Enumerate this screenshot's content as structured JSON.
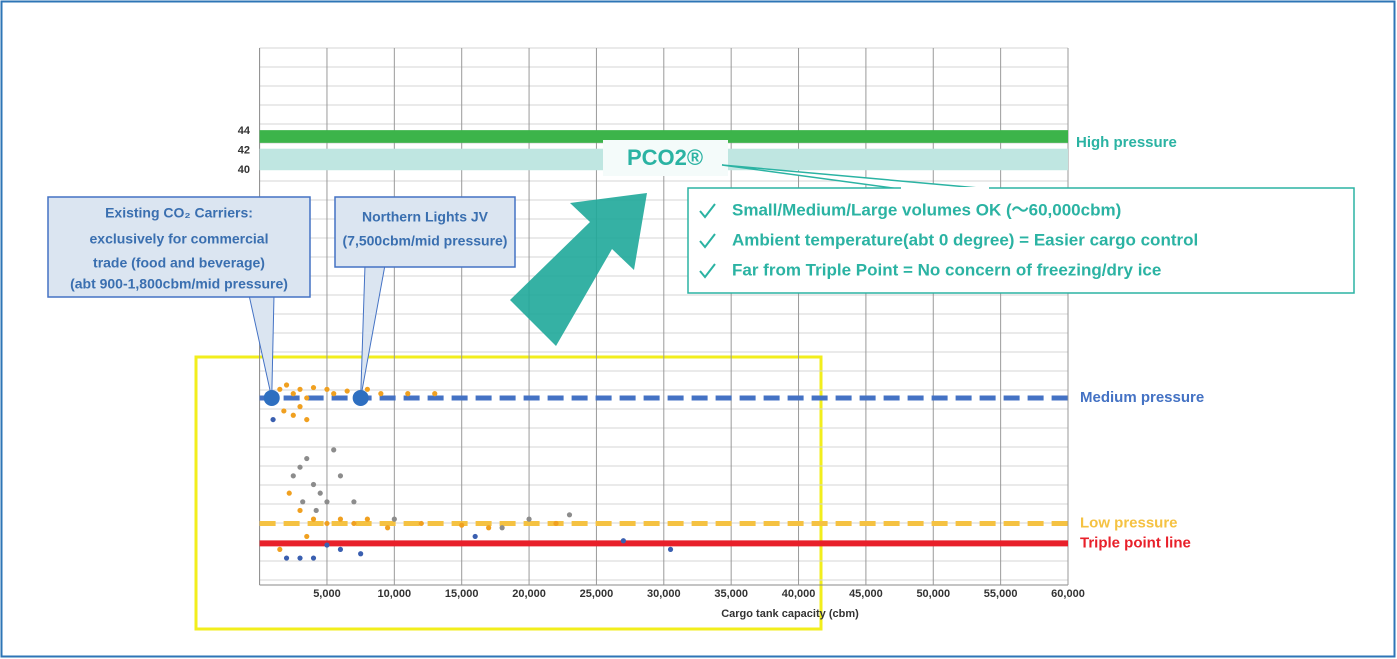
{
  "chart_data": {
    "type": "scatter",
    "xlabel": "Cargo tank capacity (cbm)",
    "xlim": [
      0,
      60000
    ],
    "xticks": [
      {
        "value": 5000,
        "label": "5,000"
      },
      {
        "value": 10000,
        "label": "10,000"
      },
      {
        "value": 15000,
        "label": "15,000"
      },
      {
        "value": 20000,
        "label": "20,000"
      },
      {
        "value": 25000,
        "label": "25,000"
      },
      {
        "value": 30000,
        "label": "30,000"
      },
      {
        "value": 35000,
        "label": "35,000"
      },
      {
        "value": 40000,
        "label": "40,000"
      },
      {
        "value": 45000,
        "label": "45,000"
      },
      {
        "value": 50000,
        "label": "50,000"
      },
      {
        "value": 55000,
        "label": "55,000"
      },
      {
        "value": 60000,
        "label": "60,000"
      }
    ],
    "ylim": [
      39,
      52.5
    ],
    "yticks": [
      40,
      42,
      44
    ],
    "y2lim": [
      -6,
      20
    ],
    "bands": [
      {
        "from": 42.8,
        "to": 44.1,
        "color": "#3cb44a"
      },
      {
        "from": 40,
        "to": 42.2,
        "color": "#bfe6e1"
      }
    ],
    "band_label": "High pressure",
    "levels": [
      {
        "label": "Medium pressure",
        "value": 17,
        "color": "#4472c4",
        "dashed": true,
        "axis": "y2"
      },
      {
        "label": "Low pressure",
        "value": 2.5,
        "color": "#f5c242",
        "dashed": true,
        "axis": "y2"
      },
      {
        "label": "Triple point line",
        "value": 0.2,
        "color": "#e8202a",
        "dashed": false,
        "axis": "y2"
      }
    ],
    "series": [
      {
        "color": "#f0a020",
        "axis": "y2",
        "x": [
          1500,
          2000,
          2500,
          3000,
          3500,
          4000,
          5000,
          5500,
          6500,
          8000,
          9000,
          11000,
          13000,
          1800,
          2500,
          3000,
          3500,
          2200,
          3000,
          4000,
          5000,
          6000,
          7000,
          8000,
          9500,
          12000,
          15000,
          17000,
          22000,
          3500,
          1500
        ],
        "values": [
          18,
          18.5,
          17.5,
          18,
          17,
          18.2,
          18,
          17.5,
          17.8,
          18,
          17.5,
          17.5,
          17.5,
          15.5,
          15,
          16,
          14.5,
          6,
          4,
          3,
          2.5,
          3,
          2.5,
          3,
          2,
          2.5,
          2.3,
          2,
          2.5,
          1,
          -0.5
        ]
      },
      {
        "color": "#8c8c8c",
        "axis": "y2",
        "x": [
          2500,
          3000,
          3500,
          4000,
          4500,
          5000,
          5500,
          6000,
          3200,
          4200,
          7000,
          10000,
          18000,
          20000,
          23000
        ],
        "values": [
          8,
          9,
          10,
          7,
          6,
          5,
          11,
          8,
          5,
          4,
          5,
          3,
          2,
          3,
          3.5
        ]
      },
      {
        "color": "#3a5fb0",
        "axis": "y2",
        "x": [
          1000,
          2000,
          3000,
          4000,
          5000,
          6000,
          7500,
          27000,
          30500,
          16000
        ],
        "values": [
          14.5,
          -1.5,
          -1.5,
          -1.5,
          0,
          -0.5,
          -1,
          0.5,
          -0.5,
          1
        ]
      }
    ],
    "highlights": [
      {
        "x": 900,
        "y": 17,
        "lines": [
          "Existing CO₂ Carriers:",
          "exclusively for commercial",
          "trade (food and beverage)",
          "(abt 900-1,800cbm/mid pressure)"
        ]
      },
      {
        "x": 7500,
        "y": 17,
        "lines": [
          "Northern Lights JV",
          "(7,500cbm/mid pressure)"
        ]
      }
    ],
    "product": "PCO2®",
    "benefits": [
      "Small/Medium/Large volumes OK (〜60,000cbm)",
      "Ambient temperature(abt 0 degree) = Easier cargo control",
      "Far from Triple Point = No concern of freezing/dry ice"
    ]
  }
}
